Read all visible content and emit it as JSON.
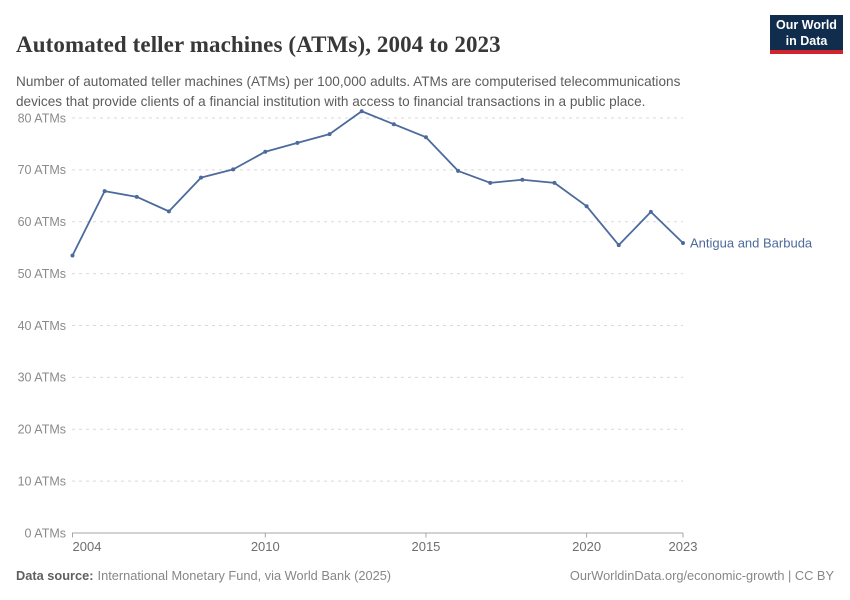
{
  "header": {
    "title": "Automated teller machines (ATMs), 2004 to 2023",
    "subtitle": "Number of automated teller machines (ATMs) per 100,000 adults. ATMs are computerised telecommunications\ndevices that provide clients of a financial institution with access to financial transactions in a public place.",
    "logo": {
      "line1": "Our World",
      "line2": "in Data",
      "bg_color": "#102d4e",
      "accent_color": "#d1252e"
    }
  },
  "chart_data": {
    "type": "line",
    "title": "Automated teller machines (ATMs), 2004 to 2023",
    "xlabel": "",
    "ylabel": "",
    "x": [
      2004,
      2005,
      2006,
      2007,
      2008,
      2009,
      2010,
      2011,
      2012,
      2013,
      2014,
      2015,
      2016,
      2017,
      2018,
      2019,
      2020,
      2021,
      2022,
      2023
    ],
    "series": [
      {
        "name": "Antigua and Barbuda",
        "color": "#4c6a9c",
        "values": [
          53.5,
          65.9,
          64.8,
          62.0,
          68.5,
          70.1,
          73.5,
          75.2,
          76.9,
          81.3,
          78.8,
          76.3,
          69.8,
          67.5,
          68.1,
          67.5,
          63.0,
          55.5,
          61.9,
          55.9
        ]
      }
    ],
    "x_axis": {
      "ticks": [
        2004,
        2010,
        2015,
        2020,
        2023
      ]
    },
    "y_axis": {
      "ticks": [
        0,
        10,
        20,
        30,
        40,
        50,
        60,
        70,
        80
      ],
      "suffix": " ATMs",
      "range": [
        0,
        85
      ]
    },
    "grid": "horizontal-dashed",
    "legend": "line-end-label"
  },
  "footer": {
    "datasource_label": "Data source:",
    "datasource_text": "International Monetary Fund, via World Bank (2025)",
    "credit": "OurWorldinData.org/economic-growth | CC BY"
  }
}
